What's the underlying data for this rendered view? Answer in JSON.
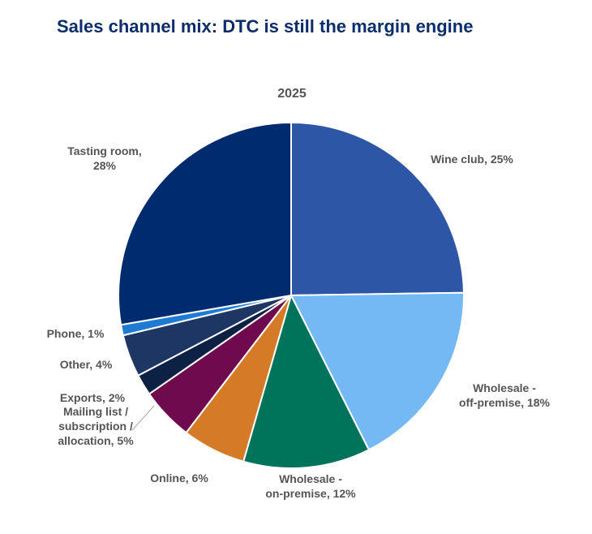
{
  "title": "Sales channel mix: DTC is still the margin engine",
  "chart_data": {
    "type": "pie",
    "subtitle": "2025",
    "slices": [
      {
        "name": "Wine club",
        "label_lines": [
          "Wine club, 25%"
        ],
        "value": 25,
        "color": "#2e56a6"
      },
      {
        "name": "Wholesale - off-premise",
        "label_lines": [
          "Wholesale -",
          "off-premise, 18%"
        ],
        "value": 18,
        "color": "#74b9f4"
      },
      {
        "name": "Wholesale - on-premise",
        "label_lines": [
          "Wholesale -",
          "on-premise, 12%"
        ],
        "value": 12,
        "color": "#00745a"
      },
      {
        "name": "Online",
        "label_lines": [
          "Online, 6%"
        ],
        "value": 6,
        "color": "#d57b27"
      },
      {
        "name": "Mailing list / subscription / allocation",
        "label_lines": [
          "Mailing list /",
          "subscription /",
          "allocation, 5%"
        ],
        "value": 5,
        "color": "#6f0a4f"
      },
      {
        "name": "Exports",
        "label_lines": [
          "Exports, 2%"
        ],
        "value": 2,
        "color": "#0d2145"
      },
      {
        "name": "Other",
        "label_lines": [
          "Other, 4%"
        ],
        "value": 4,
        "color": "#1e3663"
      },
      {
        "name": "Phone",
        "label_lines": [
          "Phone, 1%"
        ],
        "value": 1,
        "color": "#1f7ad4"
      },
      {
        "name": "Tasting room",
        "label_lines": [
          "Tasting room,",
          "28%"
        ],
        "value": 28,
        "color": "#002b6e"
      }
    ]
  }
}
